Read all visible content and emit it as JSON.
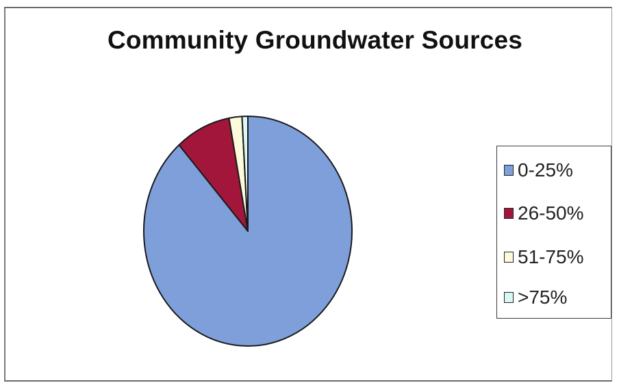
{
  "chart_data": {
    "type": "pie",
    "title": "Community Groundwater Sources",
    "categories": [
      "0-25%",
      "26-50%",
      "51-75%",
      ">75%"
    ],
    "values": [
      88.5,
      8.6,
      2.0,
      0.9
    ],
    "colors": [
      "#7f9fdb",
      "#a3163c",
      "#fdfbdc",
      "#d9f7f4"
    ],
    "legend_position": "right"
  }
}
